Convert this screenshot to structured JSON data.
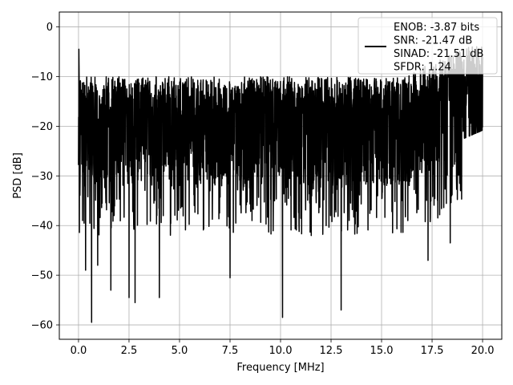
{
  "chart_data": {
    "type": "line",
    "title": "",
    "xlabel": "Frequency [MHz]",
    "ylabel": "PSD [dB]",
    "xlim": [
      -0.95,
      20.95
    ],
    "ylim": [
      -62.9,
      3.0
    ],
    "xticks": [
      0.0,
      2.5,
      5.0,
      7.5,
      10.0,
      12.5,
      15.0,
      17.5,
      20.0
    ],
    "xtick_labels": [
      "0.0",
      "2.5",
      "5.0",
      "7.5",
      "10.0",
      "12.5",
      "15.0",
      "17.5",
      "20.0"
    ],
    "yticks": [
      0,
      -10,
      -20,
      -30,
      -40,
      -50,
      -60
    ],
    "ytick_labels": [
      "0",
      "−10",
      "−20",
      "−30",
      "−40",
      "−50",
      "−60"
    ],
    "grid": true,
    "legend_position": "top-right",
    "series": [
      {
        "name": "ENOB: -3.87 bits\nSNR: -21.47 dB\nSINAD: -21.51 dB\nSFDR: 1.24",
        "color": "#000000",
        "x_range": [
          0.0,
          20.0
        ],
        "approx_mean_db": -22,
        "approx_range_db": [
          -59.5,
          -4.5
        ],
        "notable_points": [
          {
            "x": 0.02,
            "y": -4.5
          },
          {
            "x": 0.06,
            "y": -12
          },
          {
            "x": 0.2,
            "y": -39
          },
          {
            "x": 0.35,
            "y": -49
          },
          {
            "x": 0.65,
            "y": -59.5
          },
          {
            "x": 0.95,
            "y": -48
          },
          {
            "x": 1.6,
            "y": -53
          },
          {
            "x": 2.5,
            "y": -54.5
          },
          {
            "x": 2.8,
            "y": -55.5
          },
          {
            "x": 4.0,
            "y": -54.5
          },
          {
            "x": 7.5,
            "y": -50.5
          },
          {
            "x": 10.1,
            "y": -58.5
          },
          {
            "x": 13.0,
            "y": -57
          },
          {
            "x": 16.3,
            "y": -39
          },
          {
            "x": 17.3,
            "y": -47
          },
          {
            "x": 18.4,
            "y": -43.5
          },
          {
            "x": 18.7,
            "y": -16
          },
          {
            "x": 19.9,
            "y": -11
          }
        ]
      }
    ]
  }
}
